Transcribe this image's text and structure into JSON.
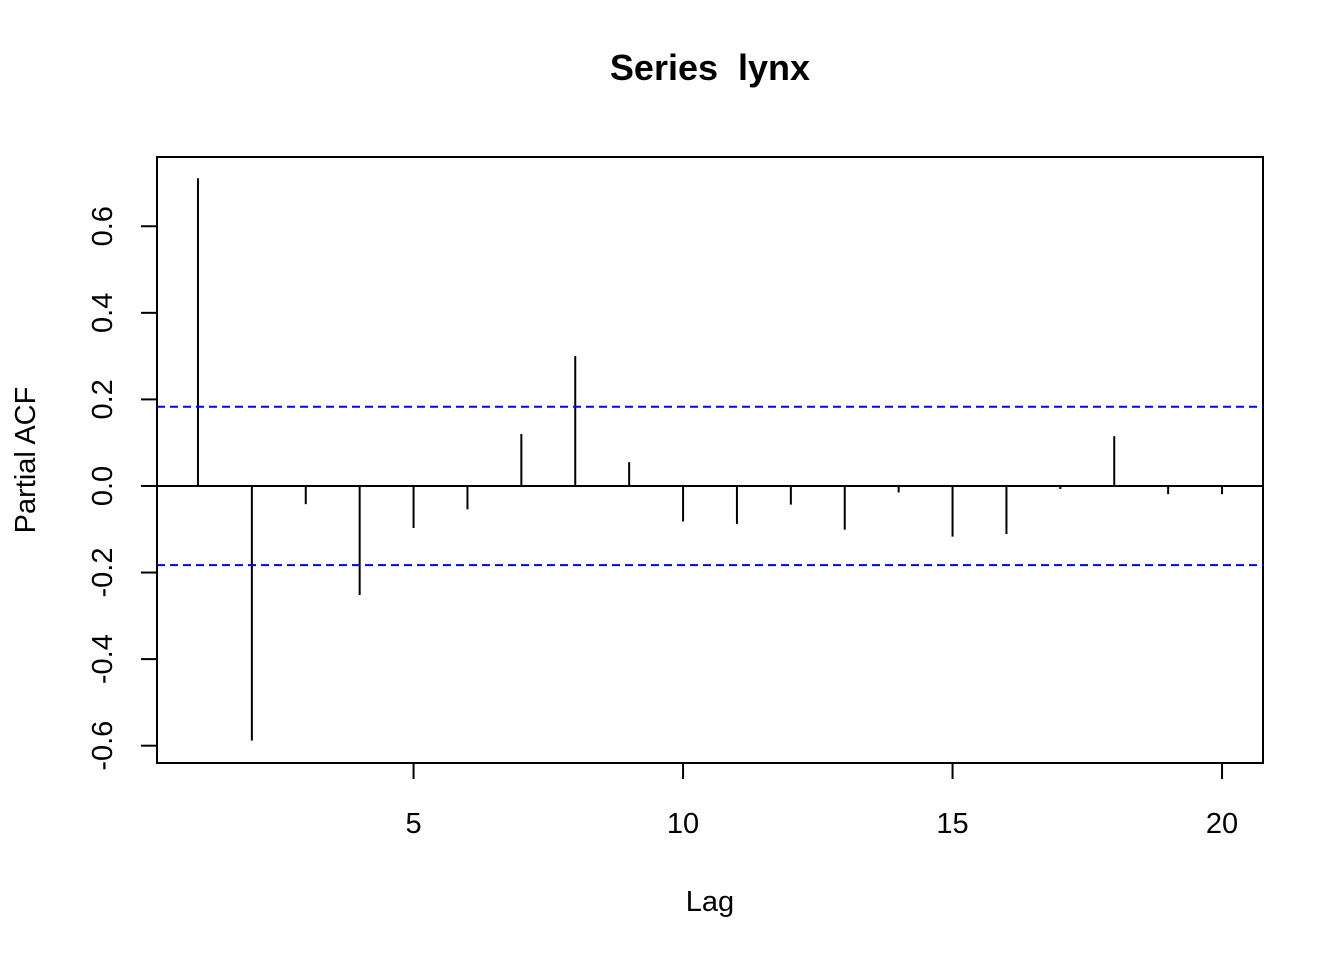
{
  "chart_data": {
    "type": "bar",
    "title": "Series  lynx",
    "xlabel": "Lag",
    "ylabel": "Partial ACF",
    "xlim": [
      0.24,
      20.76
    ],
    "ylim": [
      -0.64,
      0.76
    ],
    "x_ticks": [
      5,
      10,
      15,
      20
    ],
    "y_ticks": [
      -0.6,
      -0.4,
      -0.2,
      0.0,
      0.2,
      0.4,
      0.6
    ],
    "y_tick_labels": [
      "-0.6",
      "-0.4",
      "-0.2",
      "0.0",
      "0.2",
      "0.4",
      "0.6"
    ],
    "lags": [
      1,
      2,
      3,
      4,
      5,
      6,
      7,
      8,
      9,
      10,
      11,
      12,
      13,
      14,
      15,
      16,
      17,
      18,
      19,
      20
    ],
    "values": [
      0.711,
      -0.588,
      -0.042,
      -0.252,
      -0.097,
      -0.054,
      0.12,
      0.3,
      0.055,
      -0.082,
      -0.088,
      -0.043,
      -0.101,
      -0.015,
      -0.117,
      -0.111,
      -0.007,
      0.115,
      -0.019,
      -0.019
    ],
    "confidence_bound": 0.183,
    "colors": {
      "bars": "#000000",
      "confidence_lines": "#0000ee",
      "axes": "#000000"
    },
    "grid": false,
    "legend": "none"
  }
}
